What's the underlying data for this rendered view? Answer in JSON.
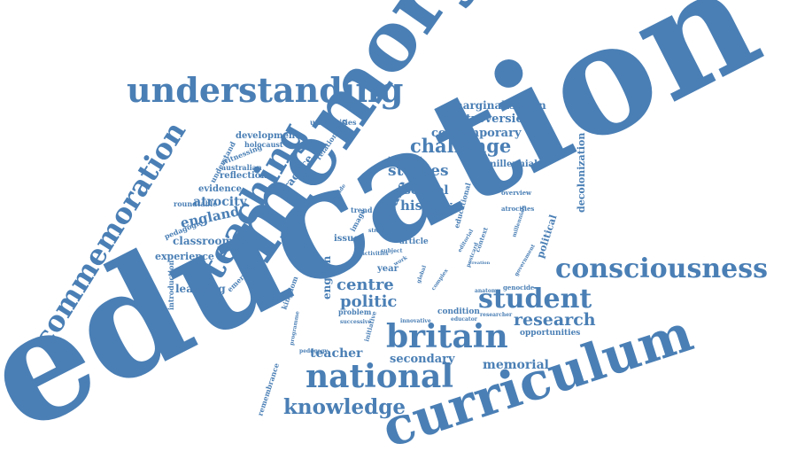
{
  "cloud": {
    "title": "Word cloud",
    "color": "#4a7fb5",
    "words": [
      "education",
      "memory",
      "curriculum",
      "understanding",
      "commemoration",
      "teaching",
      "consciousness",
      "britain",
      "national",
      "challenge",
      "student",
      "knowledge",
      "research",
      "studies",
      "culture",
      "history",
      "centre",
      "politic",
      "school",
      "english",
      "teacher",
      "secondary",
      "memorial",
      "controversies",
      "contemporary",
      "marginalisation",
      "decolonization",
      "practice",
      "england",
      "classroom",
      "experience",
      "learning",
      "atrocity",
      "evidence",
      "reflection",
      "roundtable",
      "pedagogic",
      "development",
      "holocaust",
      "witnessing",
      "australian",
      "understand",
      "universities",
      "relationship",
      "important",
      "millennial",
      "educational",
      "political",
      "introduction",
      "emerging",
      "kingdom",
      "remembrance",
      "programme",
      "pedagogy",
      "problem",
      "successive",
      "condition",
      "genocide",
      "opportunities",
      "anatomy",
      "educator",
      "researcher",
      "innovative",
      "article",
      "subject",
      "work",
      "year",
      "issue",
      "image",
      "trend",
      "provide",
      "landmark",
      "editorial",
      "context",
      "global",
      "complex",
      "postcard",
      "creation",
      "overview",
      "atrocities",
      "millennials",
      "government",
      "initiative",
      "strata",
      "activities"
    ]
  }
}
